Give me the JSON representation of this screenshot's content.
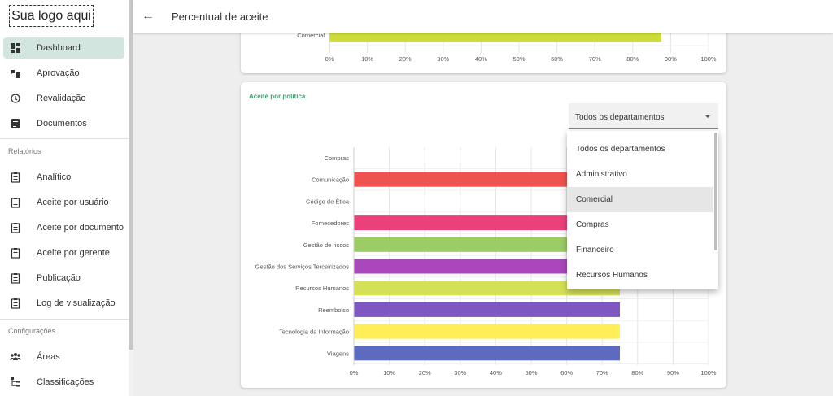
{
  "brand": {
    "logo_text": "Sua logo aqui"
  },
  "header": {
    "title": "Percentual de aceite"
  },
  "sidebar": {
    "main": [
      {
        "label": "Dashboard",
        "icon": "dashboard-icon"
      },
      {
        "label": "Aprovação",
        "icon": "thumbs-icon"
      },
      {
        "label": "Revalidação",
        "icon": "history-icon"
      },
      {
        "label": "Documentos",
        "icon": "document-icon"
      }
    ],
    "reports_label": "Relatórios",
    "reports": [
      {
        "label": "Analítico",
        "icon": "clipboard-icon"
      },
      {
        "label": "Aceite por usuário",
        "icon": "clipboard-icon"
      },
      {
        "label": "Aceite por documento",
        "icon": "clipboard-icon"
      },
      {
        "label": "Aceite por gerente",
        "icon": "clipboard-icon"
      },
      {
        "label": "Publicação",
        "icon": "clipboard-icon"
      },
      {
        "label": "Log de visualização",
        "icon": "clipboard-icon"
      }
    ],
    "config_label": "Configurações",
    "config": [
      {
        "label": "Áreas",
        "icon": "group-icon"
      },
      {
        "label": "Classificações",
        "icon": "tree-icon"
      }
    ]
  },
  "card_policy": {
    "title": "Aceite por política",
    "filter": {
      "selected": "Todos os departamentos",
      "options": [
        "Todos os departamentos",
        "Administrativo",
        "Comercial",
        "Compras",
        "Financeiro",
        "Recursos Humanos"
      ],
      "highlighted": "Comercial"
    }
  },
  "chart_data": [
    {
      "type": "bar",
      "orientation": "horizontal",
      "categories": [
        "Comercial"
      ],
      "values": [
        87.5
      ],
      "colors": [
        "#cddc39"
      ],
      "xlim": [
        0,
        100
      ],
      "x_ticks": [
        "0%",
        "10%",
        "20%",
        "30%",
        "40%",
        "50%",
        "60%",
        "70%",
        "80%",
        "90%",
        "100%"
      ],
      "grid": true
    },
    {
      "type": "bar",
      "orientation": "horizontal",
      "title": "Aceite por política",
      "categories": [
        "Compras",
        "Comunicação",
        "Código de Ética",
        "Fornecedores",
        "Gestão de riscos",
        "Gestão dos Serviços Terceirizados",
        "Recursos Humanos",
        "Reembolso",
        "Tecnologia da Informação",
        "Viagens"
      ],
      "values": [
        0,
        75,
        0,
        75,
        75,
        75,
        75,
        75,
        75,
        75
      ],
      "colors": [
        "#9e9e9e",
        "#ef5350",
        "#9e9e9e",
        "#ec407a",
        "#9ccc65",
        "#ab47bc",
        "#d4e157",
        "#7e57c2",
        "#ffee58",
        "#5c6bc0"
      ],
      "xlim": [
        0,
        100
      ],
      "x_ticks": [
        "0%",
        "10%",
        "20%",
        "30%",
        "40%",
        "50%",
        "60%",
        "70%",
        "80%",
        "90%",
        "100%"
      ],
      "grid": true
    }
  ]
}
